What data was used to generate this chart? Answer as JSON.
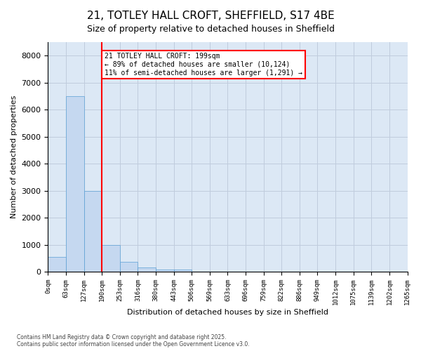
{
  "title_line1": "21, TOTLEY HALL CROFT, SHEFFIELD, S17 4BE",
  "title_line2": "Size of property relative to detached houses in Sheffield",
  "xlabel": "Distribution of detached houses by size in Sheffield",
  "ylabel": "Number of detached properties",
  "footnote": "Contains HM Land Registry data © Crown copyright and database right 2025.\nContains public sector information licensed under the Open Government Licence v3.0.",
  "bin_labels": [
    "0sqm",
    "63sqm",
    "127sqm",
    "190sqm",
    "253sqm",
    "316sqm",
    "380sqm",
    "443sqm",
    "506sqm",
    "569sqm",
    "633sqm",
    "696sqm",
    "759sqm",
    "822sqm",
    "886sqm",
    "949sqm",
    "1012sqm",
    "1075sqm",
    "1139sqm",
    "1202sqm",
    "1265sqm"
  ],
  "bar_values": [
    550,
    6500,
    3000,
    1000,
    370,
    160,
    90,
    70,
    0,
    0,
    0,
    0,
    0,
    0,
    0,
    0,
    0,
    0,
    0,
    0
  ],
  "bar_color": "#c5d8f0",
  "bar_edge_color": "#5a9fd4",
  "property_line_x": 3,
  "annotation_text": "21 TOTLEY HALL CROFT: 199sqm\n← 89% of detached houses are smaller (10,124)\n11% of semi-detached houses are larger (1,291) →",
  "vline_color": "red",
  "ylim": [
    0,
    8500
  ],
  "yticks": [
    0,
    1000,
    2000,
    3000,
    4000,
    5000,
    6000,
    7000,
    8000
  ],
  "grid_color": "#c0ccdd",
  "background_color": "#dce8f5"
}
